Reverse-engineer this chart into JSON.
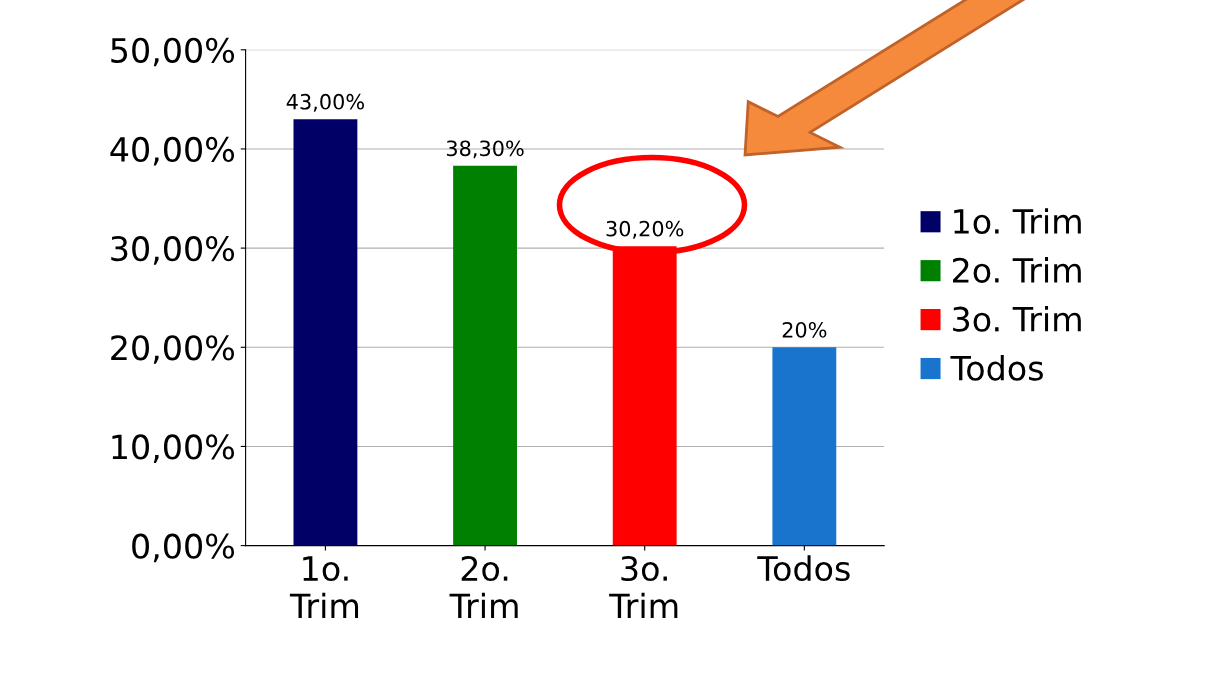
{
  "chart_data": {
    "type": "bar",
    "categories": [
      "1o. Trim",
      "2o. Trim",
      "3o. Trim",
      "Todos"
    ],
    "series": [
      {
        "name": "1o. Trim",
        "color": "#000066",
        "values": [
          43,
          null,
          null,
          null
        ],
        "value_labels": [
          "43,00%",
          null,
          null,
          null
        ]
      },
      {
        "name": "2o. Trim",
        "color": "#008000",
        "values": [
          null,
          38.3,
          null,
          null
        ],
        "value_labels": [
          null,
          "38,30%",
          null,
          null
        ]
      },
      {
        "name": "3o. Trim",
        "color": "#ff0000",
        "values": [
          null,
          null,
          30.2,
          null
        ],
        "value_labels": [
          null,
          null,
          "30,20%",
          null
        ]
      },
      {
        "name": "Todos",
        "color": "#1874cd",
        "values": [
          null,
          null,
          null,
          20
        ],
        "value_labels": [
          null,
          null,
          null,
          "20%"
        ]
      }
    ],
    "ylim": [
      0,
      50
    ],
    "yticks": [
      {
        "value": 0,
        "label": "0,00%"
      },
      {
        "value": 10,
        "label": "10,00%"
      },
      {
        "value": 20,
        "label": "20,00%"
      },
      {
        "value": 30,
        "label": "30,00%"
      },
      {
        "value": 40,
        "label": "40,00%"
      },
      {
        "value": 50,
        "label": "50,00%"
      }
    ],
    "grid": "y",
    "legend": "right"
  }
}
